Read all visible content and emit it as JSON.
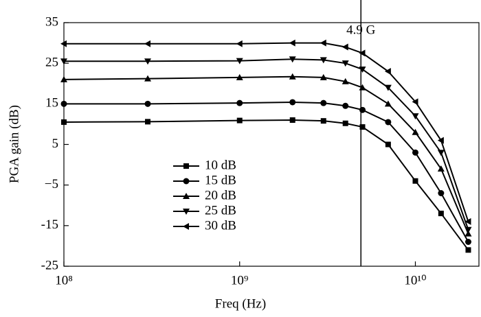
{
  "chart_data": {
    "type": "line",
    "xlabel": "Freq (Hz)",
    "ylabel": "PGA gain (dB)",
    "xscale": "log",
    "x": [
      100000000,
      300000000,
      1000000000,
      2000000000,
      3000000000,
      4000000000,
      5000000000,
      7000000000,
      10000000000,
      14000000000,
      20000000000
    ],
    "series": [
      {
        "name": "10 dB",
        "marker": "square",
        "color": "#000000",
        "values": [
          10.5,
          10.6,
          10.9,
          11.0,
          10.8,
          10.2,
          9.3,
          5,
          -4,
          -12,
          -21
        ]
      },
      {
        "name": "15 dB",
        "marker": "circle",
        "color": "#000000",
        "values": [
          15,
          15,
          15.2,
          15.4,
          15.2,
          14.5,
          13.5,
          10.5,
          3,
          -7,
          -19
        ]
      },
      {
        "name": "20 dB",
        "marker": "triangle-up",
        "color": "#000000",
        "values": [
          21,
          21.2,
          21.5,
          21.7,
          21.5,
          20.5,
          19,
          15,
          8,
          -1,
          -17
        ]
      },
      {
        "name": "25 dB",
        "marker": "triangle-down",
        "color": "#000000",
        "values": [
          25.5,
          25.5,
          25.6,
          26,
          25.8,
          25,
          23.5,
          19,
          12,
          3,
          -16
        ]
      },
      {
        "name": "30 dB",
        "marker": "triangle-left",
        "color": "#000000",
        "values": [
          29.8,
          29.8,
          29.8,
          30,
          30,
          29,
          27.5,
          23,
          15.5,
          6,
          -14
        ]
      }
    ],
    "xlim": [
      100000000,
      23000000000
    ],
    "xticks": [
      {
        "value": 100000000,
        "label": "10⁸"
      },
      {
        "value": 1000000000,
        "label": "10⁹"
      },
      {
        "value": 10000000000,
        "label": "10¹⁰"
      }
    ],
    "ylim": [
      -25,
      35
    ],
    "yticks": [
      -25,
      -15,
      {
        "value": -5,
        "label": "−5"
      },
      5,
      15,
      25,
      35
    ],
    "vline": {
      "value": 4900000000,
      "label": "4.9 G"
    }
  }
}
